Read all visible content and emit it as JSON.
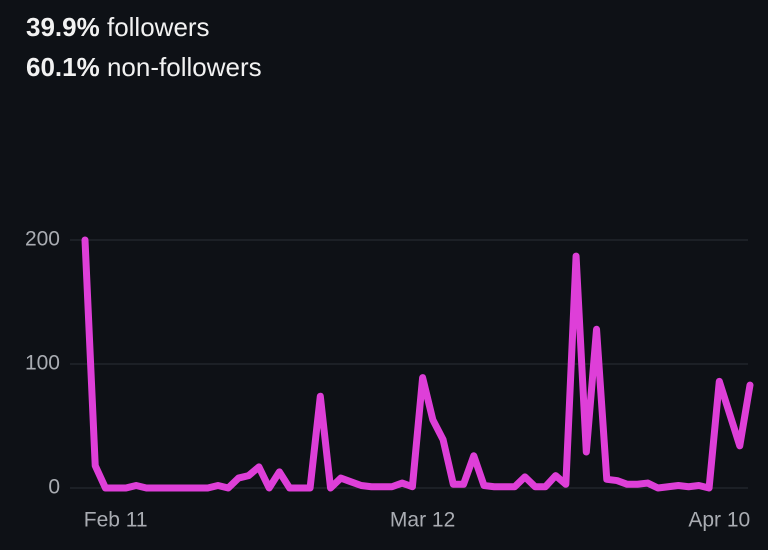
{
  "header": {
    "followers_pct": "39.9%",
    "followers_label": "followers",
    "nonfollowers_pct": "60.1%",
    "nonfollowers_label": "non-followers"
  },
  "chart_data": {
    "type": "line",
    "categories": [
      null,
      null,
      null,
      "Feb 11",
      null,
      null,
      null,
      null,
      null,
      null,
      null,
      null,
      null,
      null,
      null,
      null,
      null,
      null,
      null,
      null,
      null,
      null,
      null,
      null,
      null,
      null,
      null,
      null,
      null,
      null,
      null,
      null,
      null,
      "Mar 12",
      null,
      null,
      null,
      null,
      null,
      null,
      null,
      null,
      null,
      null,
      null,
      null,
      null,
      null,
      null,
      null,
      null,
      null,
      null,
      null,
      null,
      null,
      null,
      null,
      null,
      null,
      null,
      null,
      "Apr 10",
      null,
      null,
      null
    ],
    "series": [
      {
        "color": "#de3fd8",
        "values": [
          200,
          18,
          0,
          0,
          0,
          2,
          0,
          0,
          0,
          0,
          0,
          0,
          0,
          2,
          0,
          8,
          10,
          17,
          0,
          13,
          0,
          0,
          0,
          74,
          0,
          8,
          5,
          2,
          1,
          1,
          1,
          4,
          1,
          89,
          55,
          39,
          3,
          3,
          26,
          2,
          1,
          1,
          1,
          9,
          1,
          1,
          10,
          3,
          187,
          29,
          128,
          7,
          6,
          3,
          3,
          4,
          0,
          1,
          2,
          1,
          2,
          0,
          86,
          60,
          34,
          83
        ]
      }
    ],
    "ylim": [
      0,
      200
    ],
    "yticks": [
      0,
      100,
      200
    ],
    "grid": true
  }
}
